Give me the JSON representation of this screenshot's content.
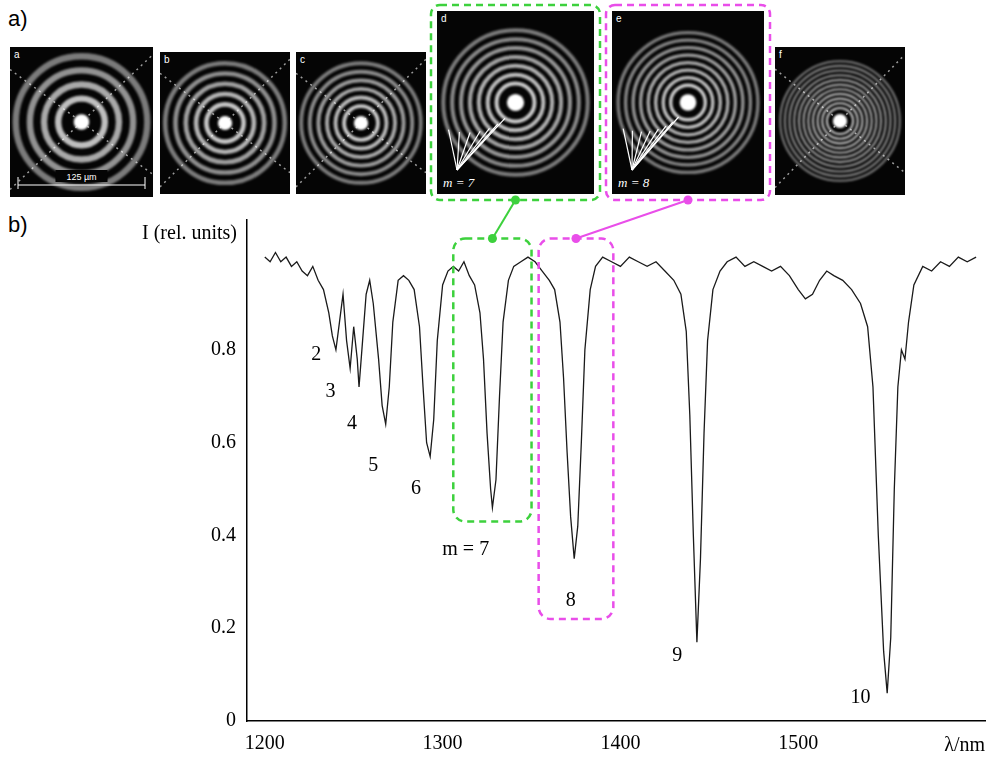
{
  "panel_a": {
    "label": "a)",
    "images": [
      {
        "letter": "a",
        "rings": 4,
        "scale_bar": "125 µm"
      },
      {
        "letter": "b",
        "rings": 5
      },
      {
        "letter": "c",
        "rings": 6
      },
      {
        "letter": "d",
        "rings": 7,
        "mode": "m = 7"
      },
      {
        "letter": "e",
        "rings": 8,
        "mode": "m = 8"
      },
      {
        "letter": "f",
        "rings": 11
      }
    ]
  },
  "panel_b": {
    "label": "b)"
  },
  "chart_data": {
    "type": "line",
    "y_label": "I (rel. units)",
    "x_label": "λ/nm",
    "xlim": [
      1190,
      1605
    ],
    "xticks": [
      1200,
      1300,
      1400,
      1500
    ],
    "ylim": [
      0,
      1.08
    ],
    "yticks": [
      0,
      0.2,
      0.4,
      0.6,
      0.8
    ],
    "grid": false,
    "color": "#1a1a1a",
    "x": [
      1200,
      1203,
      1206,
      1209,
      1212,
      1215,
      1218,
      1221,
      1224,
      1227,
      1230,
      1233,
      1236,
      1238,
      1240,
      1242,
      1244,
      1246,
      1248,
      1250,
      1252,
      1253,
      1255,
      1257,
      1259,
      1261,
      1264,
      1266,
      1268,
      1270,
      1272,
      1275,
      1278,
      1281,
      1284,
      1287,
      1289,
      1291,
      1293,
      1295,
      1297,
      1300,
      1303,
      1306,
      1309,
      1312,
      1315,
      1318,
      1321,
      1323,
      1325,
      1327,
      1328,
      1330,
      1332,
      1334,
      1337,
      1340,
      1344,
      1348,
      1352,
      1356,
      1360,
      1363,
      1366,
      1368,
      1370,
      1372,
      1374,
      1376,
      1378,
      1380,
      1383,
      1386,
      1390,
      1395,
      1400,
      1405,
      1410,
      1415,
      1420,
      1425,
      1430,
      1434,
      1437,
      1439,
      1441,
      1443,
      1445,
      1447,
      1449,
      1452,
      1456,
      1460,
      1465,
      1470,
      1475,
      1480,
      1485,
      1490,
      1495,
      1500,
      1504,
      1508,
      1512,
      1516,
      1520,
      1525,
      1530,
      1535,
      1539,
      1542,
      1545,
      1548,
      1550,
      1552,
      1554,
      1556,
      1558,
      1560,
      1562,
      1565,
      1570,
      1575,
      1580,
      1585,
      1590,
      1595,
      1600
    ],
    "values": [
      1.0,
      0.99,
      1.01,
      0.99,
      1.0,
      0.98,
      0.99,
      0.97,
      0.96,
      0.98,
      0.95,
      0.93,
      0.88,
      0.83,
      0.8,
      0.86,
      0.92,
      0.82,
      0.76,
      0.85,
      0.78,
      0.72,
      0.82,
      0.92,
      0.95,
      0.9,
      0.78,
      0.68,
      0.64,
      0.72,
      0.86,
      0.95,
      0.96,
      0.95,
      0.93,
      0.85,
      0.72,
      0.6,
      0.57,
      0.65,
      0.82,
      0.94,
      0.97,
      0.98,
      0.97,
      0.99,
      0.96,
      0.94,
      0.88,
      0.78,
      0.62,
      0.5,
      0.46,
      0.52,
      0.7,
      0.86,
      0.95,
      0.98,
      0.99,
      1.0,
      0.99,
      0.97,
      0.95,
      0.93,
      0.86,
      0.74,
      0.58,
      0.44,
      0.35,
      0.42,
      0.6,
      0.8,
      0.93,
      0.98,
      1.0,
      0.99,
      0.98,
      1.0,
      0.99,
      0.98,
      0.99,
      0.97,
      0.95,
      0.92,
      0.84,
      0.66,
      0.4,
      0.17,
      0.35,
      0.62,
      0.82,
      0.93,
      0.97,
      0.99,
      1.0,
      0.98,
      0.99,
      0.98,
      0.97,
      0.98,
      0.96,
      0.93,
      0.91,
      0.92,
      0.95,
      0.97,
      0.96,
      0.95,
      0.93,
      0.9,
      0.85,
      0.72,
      0.4,
      0.15,
      0.06,
      0.18,
      0.5,
      0.72,
      0.8,
      0.78,
      0.86,
      0.94,
      0.98,
      0.97,
      0.99,
      0.98,
      1.0,
      0.99,
      1.0
    ],
    "annotations": [
      {
        "text": "2",
        "x": 1229,
        "y": 0.79
      },
      {
        "text": "3",
        "x": 1237,
        "y": 0.71
      },
      {
        "text": "4",
        "x": 1249,
        "y": 0.64
      },
      {
        "text": "5",
        "x": 1261,
        "y": 0.55
      },
      {
        "text": "6",
        "x": 1285,
        "y": 0.5
      },
      {
        "text": "m = 7",
        "x": 1313,
        "y": 0.37
      },
      {
        "text": "8",
        "x": 1372,
        "y": 0.26
      },
      {
        "text": "9",
        "x": 1432,
        "y": 0.14
      },
      {
        "text": "10",
        "x": 1535,
        "y": 0.05
      }
    ],
    "highlights": [
      {
        "xlim": [
          1306,
          1350
        ],
        "ylim": [
          0.43,
          1.04
        ],
        "color": "#3dd13d",
        "image": "d"
      },
      {
        "xlim": [
          1354,
          1396
        ],
        "ylim": [
          0.22,
          1.04
        ],
        "color": "#e94ee9",
        "image": "e"
      }
    ]
  }
}
